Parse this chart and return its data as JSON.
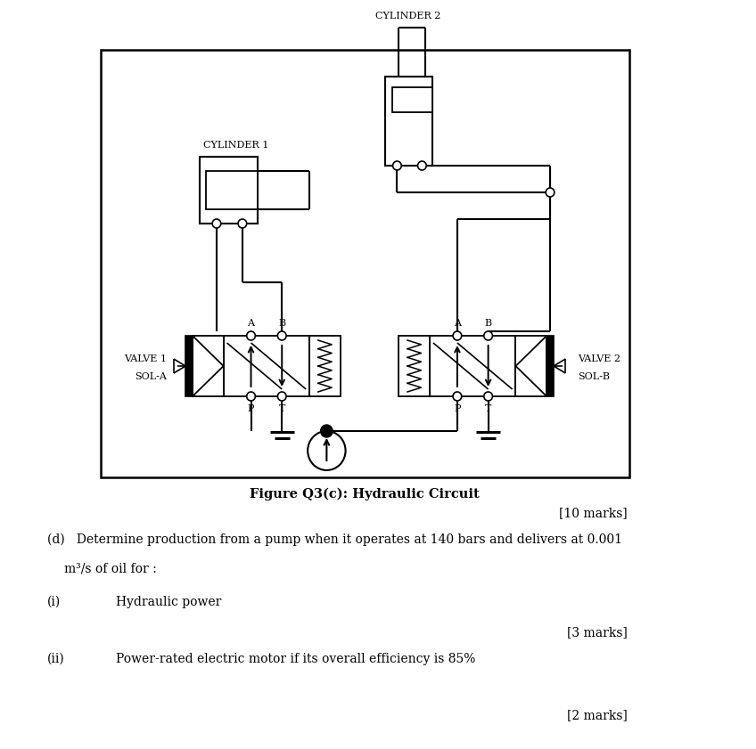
{
  "bg_color": "#ffffff",
  "figure_caption": "Figure Q3(c): Hydraulic Circuit",
  "text_10marks": "[10 marks]",
  "text_d": "(d)   Determine production from a pump when it operates at 140 bars and delivers at 0.001",
  "text_m3s": "m³/s of oil for :",
  "text_i": "Hydraulic power",
  "text_3marks": "[3 marks]",
  "text_ii": "Power-rated electric motor if its overall efficiency is 85%",
  "text_2marks": "[2 marks]",
  "label_A": "A",
  "label_B": "B",
  "label_P": "P",
  "label_T": "T",
  "valve1_label": "VALVE 1",
  "valve2_label": "VALVE 2",
  "sol_a_label": "SOL-A",
  "sol_b_label": "SOL-B",
  "cyl1_label": "CYLINDER 1",
  "cyl2_label": "CYLINDER 2"
}
